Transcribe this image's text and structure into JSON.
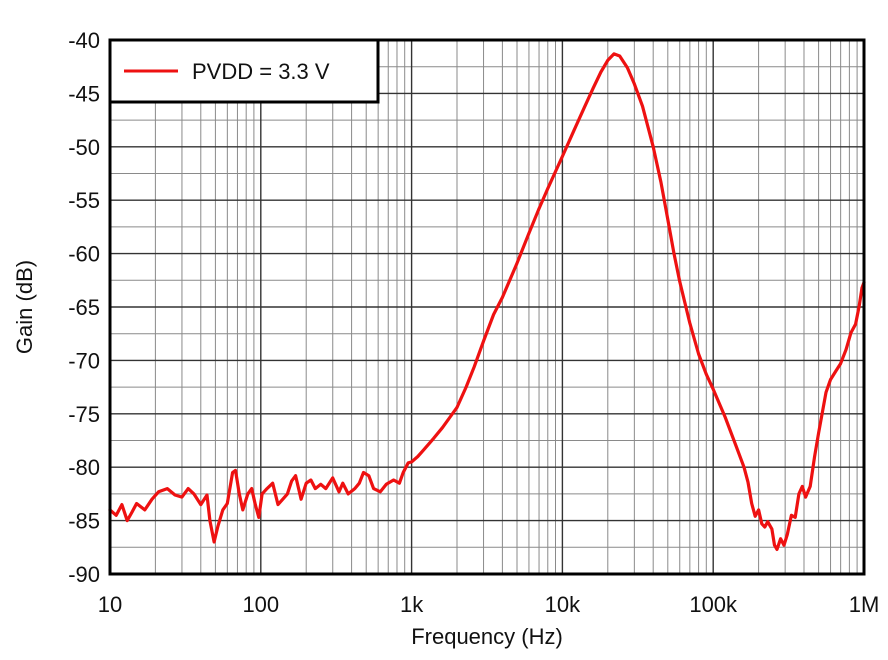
{
  "chart_data": {
    "type": "line",
    "title": "",
    "xlabel": "Frequency (Hz)",
    "ylabel": "Gain (dB)",
    "x_scale": "log",
    "xlim": [
      10,
      1000000
    ],
    "ylim": [
      -90,
      -40
    ],
    "x_ticks": [
      {
        "value": 10,
        "label": "10"
      },
      {
        "value": 100,
        "label": "100"
      },
      {
        "value": 1000,
        "label": "1k"
      },
      {
        "value": 10000,
        "label": "10k"
      },
      {
        "value": 100000,
        "label": "100k"
      },
      {
        "value": 1000000,
        "label": "1M"
      }
    ],
    "y_ticks": [
      {
        "value": -40,
        "label": "-40"
      },
      {
        "value": -45,
        "label": "-45"
      },
      {
        "value": -50,
        "label": "-50"
      },
      {
        "value": -55,
        "label": "-55"
      },
      {
        "value": -60,
        "label": "-60"
      },
      {
        "value": -65,
        "label": "-65"
      },
      {
        "value": -70,
        "label": "-70"
      },
      {
        "value": -75,
        "label": "-75"
      },
      {
        "value": -80,
        "label": "-80"
      },
      {
        "value": -85,
        "label": "-85"
      },
      {
        "value": -90,
        "label": "-90"
      }
    ],
    "grid": true,
    "legend_position": "top-left",
    "series": [
      {
        "name": "PVDD = 3.3 V",
        "color": "#ee1111",
        "points": [
          [
            10,
            -84
          ],
          [
            11,
            -84.5
          ],
          [
            12,
            -83.5
          ],
          [
            13,
            -85
          ],
          [
            14,
            -84.2
          ],
          [
            15,
            -83.4
          ],
          [
            17,
            -84
          ],
          [
            19,
            -83
          ],
          [
            21,
            -82.3
          ],
          [
            24,
            -82
          ],
          [
            27,
            -82.6
          ],
          [
            30,
            -82.8
          ],
          [
            33,
            -82
          ],
          [
            36,
            -82.5
          ],
          [
            40,
            -83.5
          ],
          [
            44,
            -82.6
          ],
          [
            46,
            -85
          ],
          [
            49,
            -87
          ],
          [
            52,
            -85.5
          ],
          [
            56,
            -84
          ],
          [
            60,
            -83.4
          ],
          [
            65,
            -80.5
          ],
          [
            68,
            -80.3
          ],
          [
            72,
            -82.5
          ],
          [
            76,
            -84
          ],
          [
            82,
            -82.5
          ],
          [
            87,
            -82
          ],
          [
            92,
            -83.5
          ],
          [
            97,
            -84.7
          ],
          [
            102,
            -82.5
          ],
          [
            110,
            -82
          ],
          [
            120,
            -81.5
          ],
          [
            130,
            -83.5
          ],
          [
            140,
            -83
          ],
          [
            150,
            -82.5
          ],
          [
            160,
            -81.3
          ],
          [
            170,
            -80.8
          ],
          [
            185,
            -83
          ],
          [
            200,
            -81.5
          ],
          [
            215,
            -81.2
          ],
          [
            230,
            -82
          ],
          [
            250,
            -81.6
          ],
          [
            270,
            -82
          ],
          [
            300,
            -81
          ],
          [
            330,
            -82.3
          ],
          [
            350,
            -81.5
          ],
          [
            380,
            -82.5
          ],
          [
            420,
            -82
          ],
          [
            450,
            -81.5
          ],
          [
            480,
            -80.5
          ],
          [
            520,
            -80.8
          ],
          [
            560,
            -82
          ],
          [
            620,
            -82.3
          ],
          [
            680,
            -81.6
          ],
          [
            760,
            -81.2
          ],
          [
            830,
            -81.5
          ],
          [
            880,
            -80.5
          ],
          [
            950,
            -79.6
          ],
          [
            1000,
            -79.5
          ],
          [
            1100,
            -79
          ],
          [
            1200,
            -78.4
          ],
          [
            1400,
            -77.3
          ],
          [
            1600,
            -76.3
          ],
          [
            1800,
            -75.3
          ],
          [
            2000,
            -74.4
          ],
          [
            2300,
            -72.5
          ],
          [
            2600,
            -70.6
          ],
          [
            3000,
            -68.2
          ],
          [
            3500,
            -65.7
          ],
          [
            4000,
            -64.1
          ],
          [
            5000,
            -60.9
          ],
          [
            6000,
            -58.1
          ],
          [
            7000,
            -55.8
          ],
          [
            8000,
            -53.9
          ],
          [
            10000,
            -50.9
          ],
          [
            12000,
            -48.4
          ],
          [
            14000,
            -46.3
          ],
          [
            16000,
            -44.5
          ],
          [
            18000,
            -43
          ],
          [
            20000,
            -41.9
          ],
          [
            22000,
            -41.3
          ],
          [
            24000,
            -41.5
          ],
          [
            27000,
            -42.6
          ],
          [
            30000,
            -44.1
          ],
          [
            34000,
            -46.2
          ],
          [
            40000,
            -50
          ],
          [
            45000,
            -53.3
          ],
          [
            50000,
            -56.8
          ],
          [
            55000,
            -60
          ],
          [
            60000,
            -62.6
          ],
          [
            70000,
            -66.5
          ],
          [
            80000,
            -69.4
          ],
          [
            90000,
            -71.3
          ],
          [
            100000,
            -72.7
          ],
          [
            120000,
            -75.3
          ],
          [
            140000,
            -77.8
          ],
          [
            160000,
            -80
          ],
          [
            170000,
            -81.4
          ],
          [
            180000,
            -83.4
          ],
          [
            190000,
            -84.6
          ],
          [
            200000,
            -84
          ],
          [
            210000,
            -85.3
          ],
          [
            220000,
            -85.6
          ],
          [
            230000,
            -85.1
          ],
          [
            245000,
            -85.8
          ],
          [
            255000,
            -87.3
          ],
          [
            265000,
            -87.7
          ],
          [
            280000,
            -86.7
          ],
          [
            295000,
            -87.3
          ],
          [
            310000,
            -86.3
          ],
          [
            330000,
            -84.5
          ],
          [
            350000,
            -84.7
          ],
          [
            370000,
            -82.5
          ],
          [
            390000,
            -81.8
          ],
          [
            410000,
            -82.8
          ],
          [
            440000,
            -81.8
          ],
          [
            470000,
            -79
          ],
          [
            500000,
            -76.8
          ],
          [
            560000,
            -73
          ],
          [
            600000,
            -71.8
          ],
          [
            650000,
            -71
          ],
          [
            700000,
            -70.3
          ],
          [
            760000,
            -69
          ],
          [
            820000,
            -67.4
          ],
          [
            880000,
            -66.6
          ],
          [
            930000,
            -64.9
          ],
          [
            970000,
            -63.2
          ],
          [
            1000000,
            -62.7
          ]
        ]
      }
    ]
  }
}
